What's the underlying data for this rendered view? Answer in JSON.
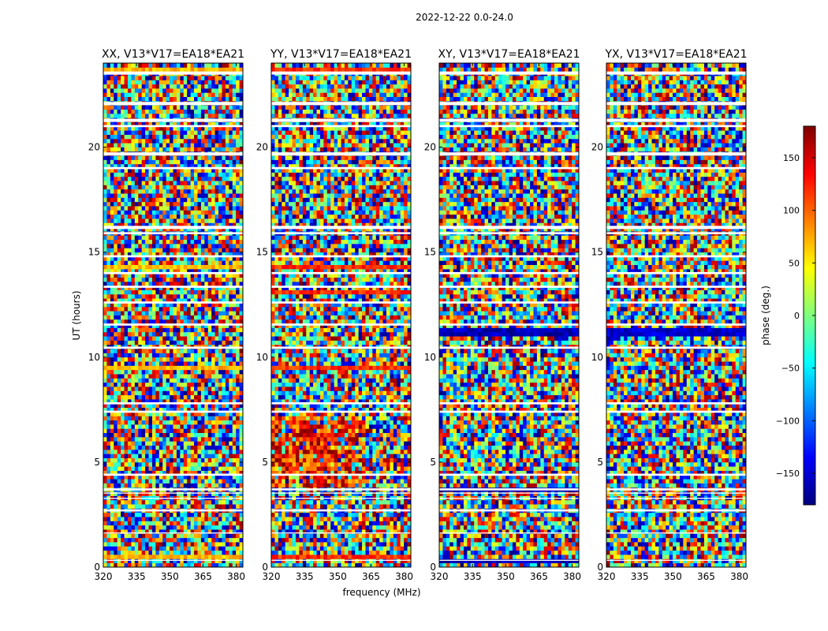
{
  "suptitle": "2022-12-22 0.0-24.0",
  "xlabel": "frequency (MHz)",
  "ylabel": "UT (hours)",
  "chart_data": {
    "type": "heatmap",
    "x": {
      "range": [
        320,
        383
      ],
      "ticks": [
        320,
        335,
        350,
        365,
        380
      ]
    },
    "y": {
      "range": [
        0,
        24
      ],
      "ticks": [
        0,
        5,
        10,
        15,
        20
      ]
    },
    "colorbar": {
      "label": "phase (deg.)",
      "range": [
        -180,
        180
      ],
      "ticks": [
        -150,
        -100,
        -50,
        0,
        50,
        100,
        150
      ],
      "tick_labels": [
        "−150",
        "−100",
        "−50",
        "0",
        "50",
        "100",
        "150"
      ],
      "colormap": [
        "#00007f",
        "#0000ff",
        "#007fff",
        "#00ffff",
        "#7fff7f",
        "#ffff00",
        "#ff7f00",
        "#ff0000",
        "#7f0000"
      ]
    },
    "gap_bands_hours": [
      [
        23.45,
        23.6
      ],
      [
        22.0,
        22.15
      ],
      [
        21.2,
        21.35
      ],
      [
        20.95,
        21.05
      ],
      [
        19.6,
        19.75
      ],
      [
        18.95,
        19.05
      ],
      [
        16.1,
        16.25
      ],
      [
        15.85,
        15.95
      ],
      [
        14.75,
        14.85
      ],
      [
        13.95,
        14.05
      ],
      [
        13.3,
        13.4
      ],
      [
        12.55,
        12.65
      ],
      [
        11.5,
        11.6
      ],
      [
        10.4,
        10.5
      ],
      [
        7.75,
        7.85
      ],
      [
        7.35,
        7.45
      ],
      [
        4.35,
        4.45
      ],
      [
        3.65,
        3.75
      ],
      [
        3.5,
        3.55
      ],
      [
        3.25,
        3.3
      ],
      [
        2.65,
        2.75
      ],
      [
        1.6,
        1.65
      ],
      [
        0.3,
        0.35
      ]
    ],
    "panels": [
      {
        "title": "XX, V13*V17=EA18*EA21",
        "coherent_hours": [
          [
            0.35,
            0.55
          ],
          [
            9.35,
            9.6
          ],
          [
            14.15,
            14.4
          ],
          [
            23.6,
            23.85
          ]
        ],
        "coherent_phase": 70,
        "patch": null
      },
      {
        "title": "YY, V13*V17=EA18*EA21",
        "coherent_hours": [
          [
            0.35,
            0.55
          ],
          [
            9.35,
            9.6
          ],
          [
            12.9,
            13.1
          ],
          [
            14.15,
            14.4
          ],
          [
            23.6,
            23.85
          ]
        ],
        "coherent_phase": 120,
        "patch": {
          "hours": [
            3.8,
            7.2
          ],
          "mhz": [
            320,
            362
          ],
          "phase": 125
        }
      },
      {
        "title": "XY, V13*V17=EA18*EA21",
        "coherent_hours": [
          [
            0.2,
            0.4
          ],
          [
            3.65,
            3.9
          ],
          [
            11.0,
            11.3
          ]
        ],
        "coherent_phase": -160,
        "patch": null
      },
      {
        "title": "YX, V13*V17=EA18*EA21",
        "coherent_hours": [
          [
            11.0,
            11.3
          ]
        ],
        "coherent_phase": -150,
        "patch": null
      }
    ]
  }
}
